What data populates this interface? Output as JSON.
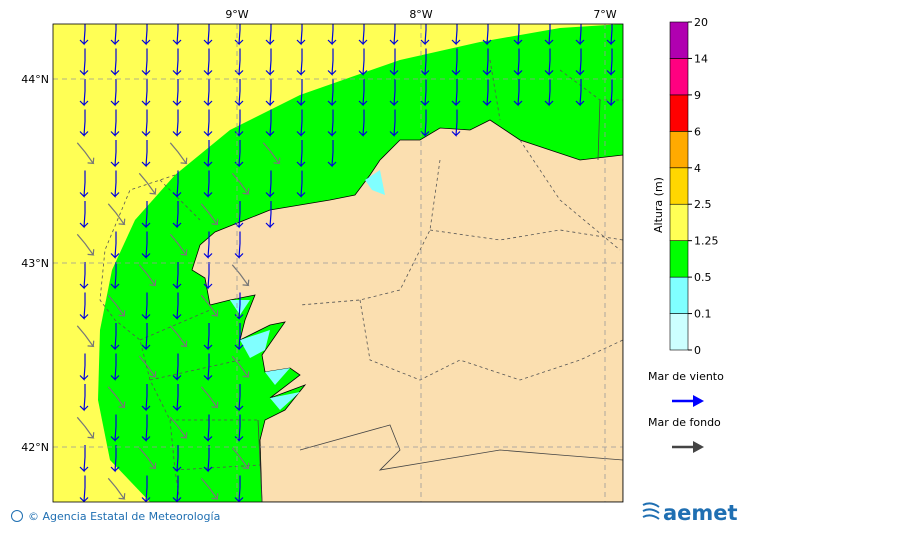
{
  "map": {
    "lon_labels": [
      "9°W",
      "8°W",
      "7°W"
    ],
    "lat_labels": [
      "44°N",
      "43°N",
      "42°N"
    ]
  },
  "colorbar": {
    "title": "Altura (m)",
    "levels": [
      "0",
      "0.1",
      "0.5",
      "1.25",
      "2.5",
      "4",
      "6",
      "9",
      "14",
      "20"
    ],
    "colors": [
      "#ccffff",
      "#80ffff",
      "#00ff00",
      "#ffff55",
      "#ffd700",
      "#ffaa00",
      "#ff0000",
      "#ff0080",
      "#b000b0"
    ]
  },
  "legend": {
    "items": [
      {
        "label": "Mar de viento",
        "color": "#0000ff"
      },
      {
        "label": "Mar de fondo",
        "color": "#444444"
      }
    ]
  },
  "footer": {
    "credit": "© Agencia Estatal de Meteorología",
    "logo": "aemet"
  }
}
